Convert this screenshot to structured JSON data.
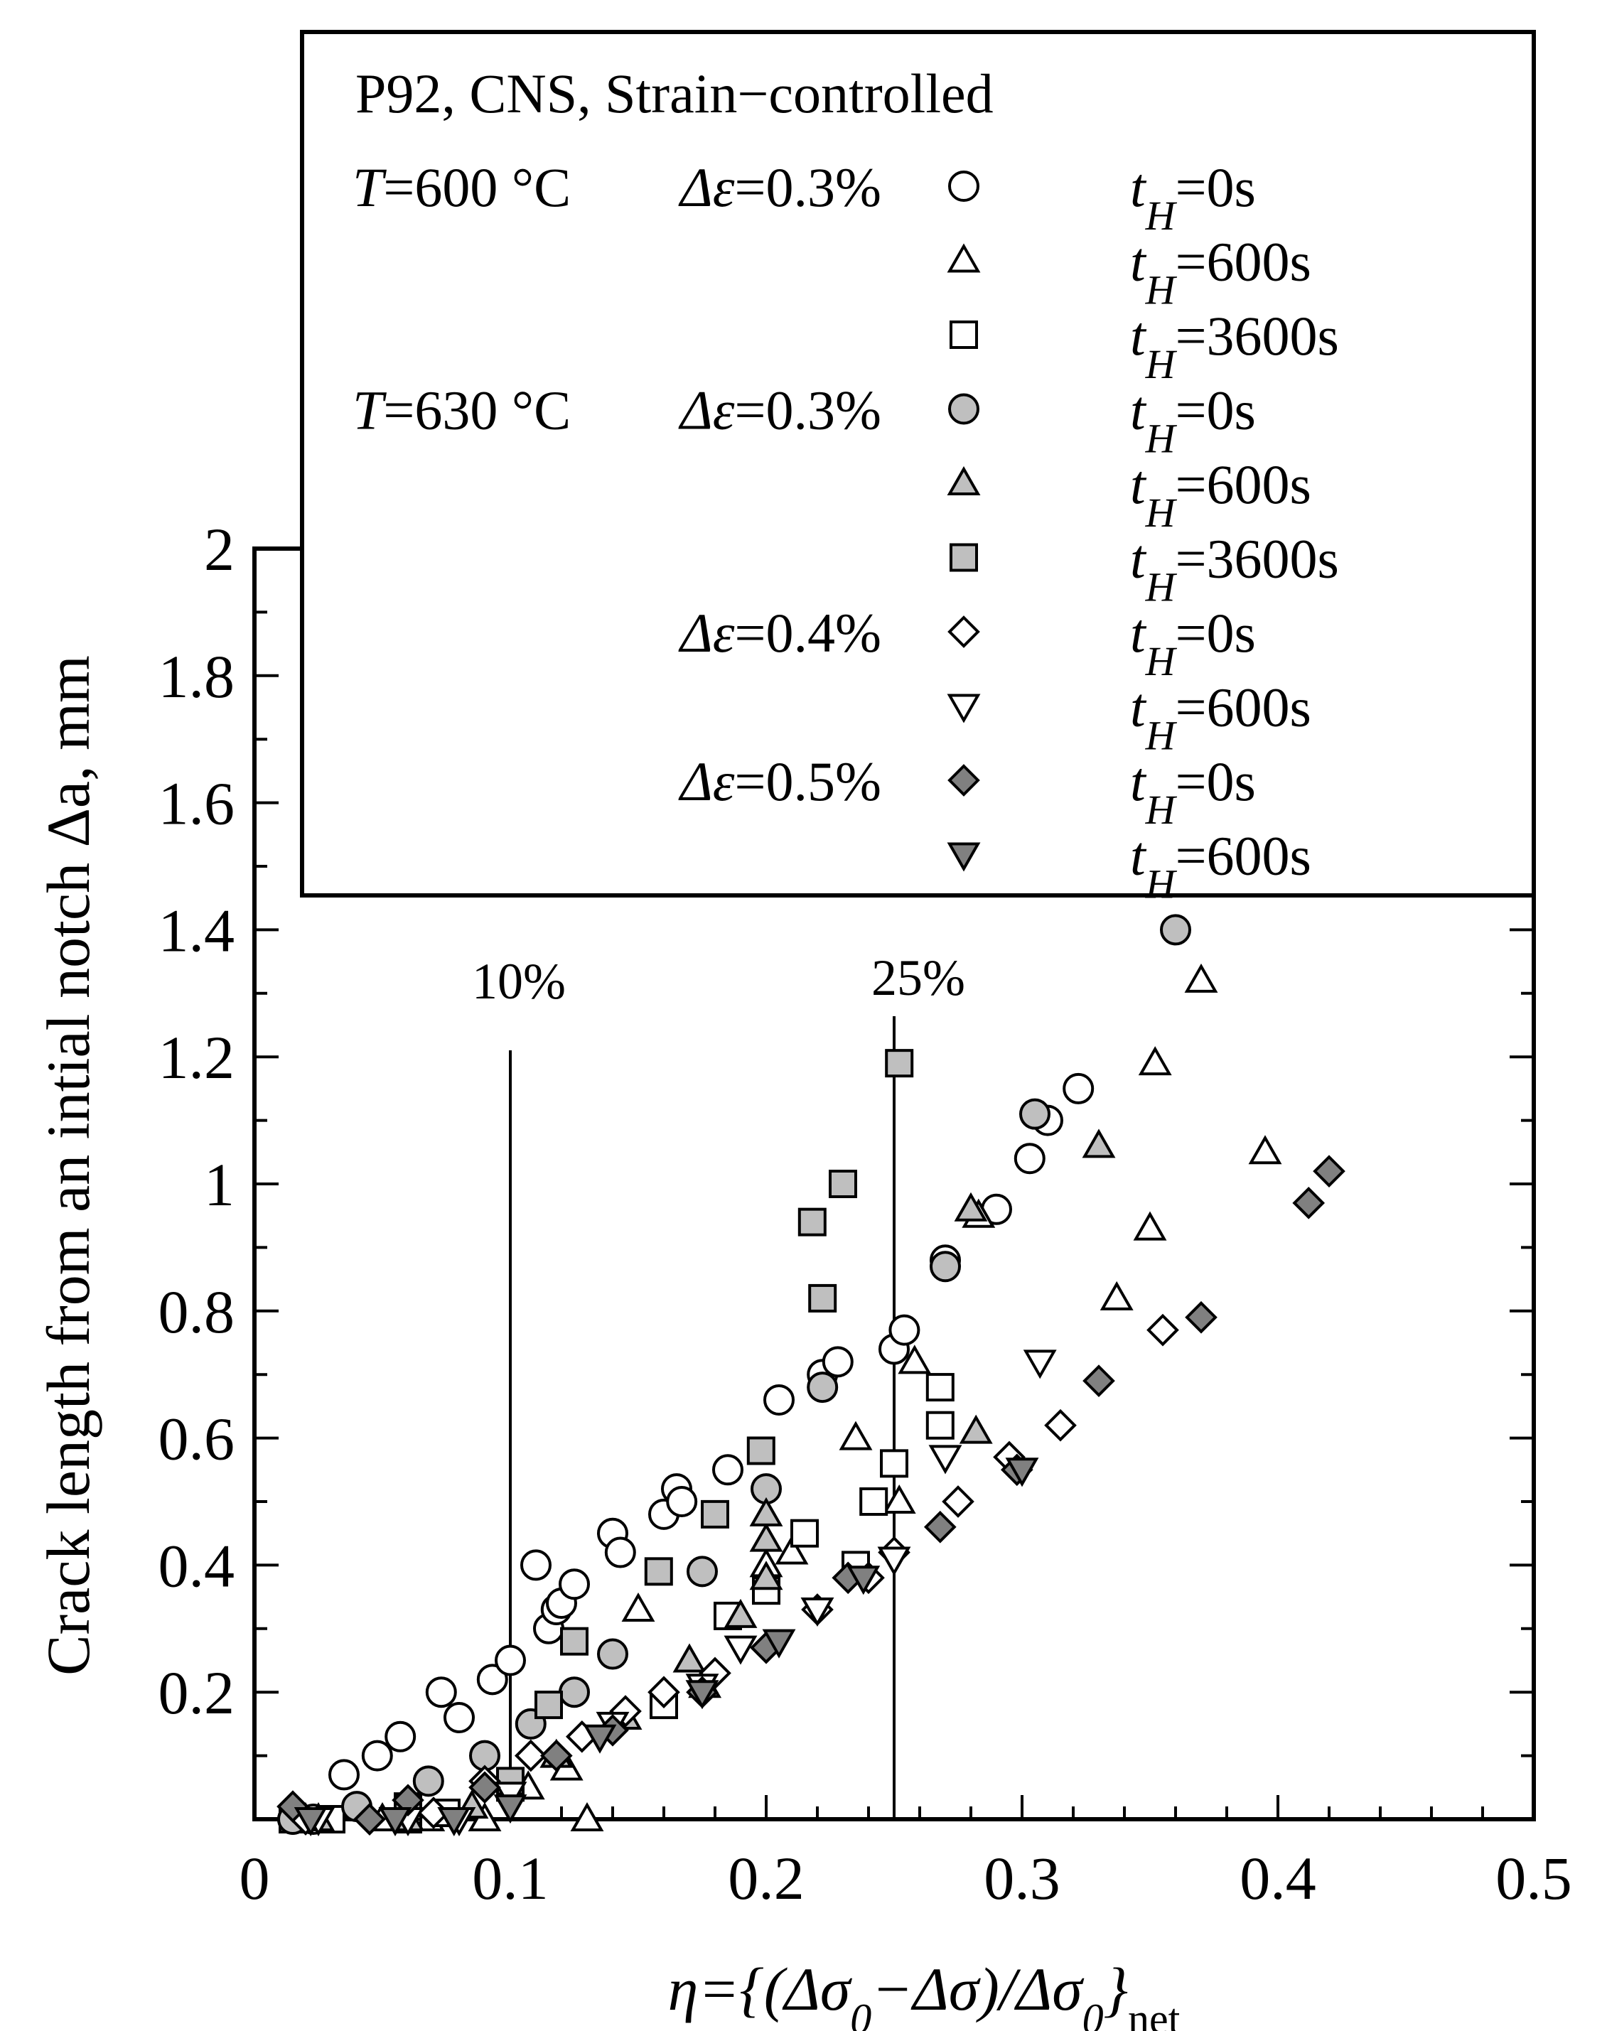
{
  "chart_data": {
    "type": "scatter",
    "title": "",
    "xlabel": "η={(Δσ0−Δσ)/Δσ0}net",
    "ylabel": "Crack length from an intial notch Δa, mm",
    "xlim": [
      0,
      0.5
    ],
    "ylim": [
      0,
      2
    ],
    "x_ticks": [
      "0",
      "0.1",
      "0.2",
      "0.3",
      "0.4",
      "0.5"
    ],
    "y_ticks": [
      "0.2",
      "0.4",
      "0.6",
      "0.8",
      "1",
      "1.2",
      "1.4",
      "1.6",
      "1.8",
      "2"
    ],
    "grid": false,
    "vertical_lines": [
      {
        "x": 0.1,
        "label": "10%"
      },
      {
        "x": 0.25,
        "label": "25%"
      }
    ],
    "legend": {
      "title": "P92, CNS, Strain−controlled",
      "location": "top",
      "groups": [
        {
          "temperature": "T=600 °C",
          "strain": "Δε=0.3%"
        },
        {
          "temperature": "T=630 °C",
          "strain": "Δε=0.3%"
        },
        {
          "temperature": "",
          "strain": "Δε=0.4%"
        },
        {
          "temperature": "",
          "strain": "Δε=0.5%"
        }
      ]
    },
    "series": [
      {
        "name": "T=600 °C Δε=0.3% tH=0s",
        "hold_label": "tH=0s",
        "marker": "circle",
        "fill": "#ffffff",
        "points": [
          [
            0.015,
            0.0
          ],
          [
            0.023,
            0.0
          ],
          [
            0.035,
            0.07
          ],
          [
            0.048,
            0.1
          ],
          [
            0.057,
            0.13
          ],
          [
            0.073,
            0.2
          ],
          [
            0.08,
            0.16
          ],
          [
            0.093,
            0.22
          ],
          [
            0.1,
            0.25
          ],
          [
            0.11,
            0.4
          ],
          [
            0.115,
            0.3
          ],
          [
            0.118,
            0.33
          ],
          [
            0.12,
            0.34
          ],
          [
            0.125,
            0.37
          ],
          [
            0.14,
            0.45
          ],
          [
            0.143,
            0.42
          ],
          [
            0.16,
            0.48
          ],
          [
            0.165,
            0.52
          ],
          [
            0.167,
            0.5
          ],
          [
            0.185,
            0.55
          ],
          [
            0.205,
            0.66
          ],
          [
            0.222,
            0.7
          ],
          [
            0.228,
            0.72
          ],
          [
            0.25,
            0.74
          ],
          [
            0.254,
            0.77
          ],
          [
            0.27,
            0.88
          ],
          [
            0.29,
            0.96
          ],
          [
            0.303,
            1.04
          ],
          [
            0.31,
            1.1
          ],
          [
            0.322,
            1.15
          ]
        ]
      },
      {
        "name": "T=600 °C Δε=0.3% tH=600s",
        "hold_label": "tH=600s",
        "marker": "triangle-up",
        "fill": "#ffffff",
        "points": [
          [
            0.02,
            0.0
          ],
          [
            0.05,
            0.0
          ],
          [
            0.068,
            0.0
          ],
          [
            0.09,
            0.0
          ],
          [
            0.107,
            0.05
          ],
          [
            0.122,
            0.08
          ],
          [
            0.13,
            0.0
          ],
          [
            0.15,
            0.33
          ],
          [
            0.176,
            0.21
          ],
          [
            0.2,
            0.4
          ],
          [
            0.21,
            0.42
          ],
          [
            0.235,
            0.6
          ],
          [
            0.252,
            0.5
          ],
          [
            0.258,
            0.72
          ],
          [
            0.283,
            0.95
          ],
          [
            0.337,
            0.82
          ],
          [
            0.35,
            0.93
          ],
          [
            0.352,
            1.19
          ],
          [
            0.37,
            1.32
          ],
          [
            0.395,
            1.05
          ]
        ]
      },
      {
        "name": "T=600 °C Δε=0.3% tH=3600s",
        "hold_label": "tH=3600s",
        "marker": "square",
        "fill": "#ffffff",
        "points": [
          [
            0.015,
            0.0
          ],
          [
            0.03,
            0.0
          ],
          [
            0.06,
            0.0
          ],
          [
            0.075,
            0.01
          ],
          [
            0.1,
            0.05
          ],
          [
            0.16,
            0.18
          ],
          [
            0.185,
            0.32
          ],
          [
            0.2,
            0.36
          ],
          [
            0.215,
            0.45
          ],
          [
            0.235,
            0.4
          ],
          [
            0.242,
            0.5
          ],
          [
            0.25,
            0.56
          ],
          [
            0.268,
            0.62
          ],
          [
            0.268,
            0.68
          ]
        ]
      },
      {
        "name": "T=630 °C Δε=0.3% tH=0s",
        "hold_label": "tH=0s",
        "marker": "circle",
        "fill": "#bfbfbf",
        "points": [
          [
            0.015,
            0.0
          ],
          [
            0.04,
            0.02
          ],
          [
            0.068,
            0.06
          ],
          [
            0.09,
            0.1
          ],
          [
            0.108,
            0.15
          ],
          [
            0.125,
            0.2
          ],
          [
            0.14,
            0.26
          ],
          [
            0.175,
            0.39
          ],
          [
            0.2,
            0.52
          ],
          [
            0.222,
            0.68
          ],
          [
            0.27,
            0.87
          ],
          [
            0.305,
            1.11
          ],
          [
            0.36,
            1.4
          ]
        ]
      },
      {
        "name": "T=630 °C Δε=0.3% tH=600s",
        "hold_label": "tH=600s",
        "marker": "triangle-up",
        "fill": "#bfbfbf",
        "points": [
          [
            0.025,
            0.0
          ],
          [
            0.06,
            0.0
          ],
          [
            0.085,
            0.02
          ],
          [
            0.118,
            0.1
          ],
          [
            0.145,
            0.16
          ],
          [
            0.17,
            0.25
          ],
          [
            0.19,
            0.32
          ],
          [
            0.2,
            0.38
          ],
          [
            0.2,
            0.44
          ],
          [
            0.2,
            0.48
          ],
          [
            0.282,
            0.61
          ],
          [
            0.28,
            0.96
          ],
          [
            0.33,
            1.06
          ]
        ]
      },
      {
        "name": "T=630 °C Δε=0.3% tH=3600s",
        "hold_label": "tH=3600s",
        "marker": "square",
        "fill": "#bfbfbf",
        "points": [
          [
            0.06,
            0.02
          ],
          [
            0.1,
            0.06
          ],
          [
            0.115,
            0.18
          ],
          [
            0.125,
            0.28
          ],
          [
            0.158,
            0.39
          ],
          [
            0.18,
            0.48
          ],
          [
            0.198,
            0.58
          ],
          [
            0.218,
            0.94
          ],
          [
            0.222,
            0.82
          ],
          [
            0.23,
            1.0
          ],
          [
            0.252,
            1.19
          ]
        ]
      },
      {
        "name": "Δε=0.4% tH=0s",
        "hold_label": "tH=0s",
        "marker": "diamond",
        "fill": "#ffffff",
        "points": [
          [
            0.02,
            0.0
          ],
          [
            0.045,
            0.0
          ],
          [
            0.07,
            0.01
          ],
          [
            0.09,
            0.06
          ],
          [
            0.108,
            0.1
          ],
          [
            0.128,
            0.13
          ],
          [
            0.145,
            0.17
          ],
          [
            0.16,
            0.2
          ],
          [
            0.18,
            0.23
          ],
          [
            0.2,
            0.27
          ],
          [
            0.22,
            0.33
          ],
          [
            0.24,
            0.38
          ],
          [
            0.25,
            0.42
          ],
          [
            0.275,
            0.5
          ],
          [
            0.295,
            0.57
          ],
          [
            0.315,
            0.62
          ],
          [
            0.355,
            0.77
          ]
        ]
      },
      {
        "name": "Δε=0.4% tH=600s",
        "hold_label": "tH=600s",
        "marker": "triangle-down",
        "fill": "#ffffff",
        "points": [
          [
            0.025,
            0.0
          ],
          [
            0.06,
            0.0
          ],
          [
            0.08,
            0.0
          ],
          [
            0.1,
            0.04
          ],
          [
            0.14,
            0.15
          ],
          [
            0.175,
            0.21
          ],
          [
            0.19,
            0.27
          ],
          [
            0.22,
            0.33
          ],
          [
            0.25,
            0.41
          ],
          [
            0.27,
            0.57
          ],
          [
            0.307,
            0.72
          ]
        ]
      },
      {
        "name": "Δε=0.5% tH=0s",
        "hold_label": "tH=0s",
        "marker": "diamond",
        "fill": "#808080",
        "points": [
          [
            0.015,
            0.02
          ],
          [
            0.045,
            0.0
          ],
          [
            0.06,
            0.03
          ],
          [
            0.09,
            0.05
          ],
          [
            0.118,
            0.1
          ],
          [
            0.14,
            0.14
          ],
          [
            0.175,
            0.2
          ],
          [
            0.2,
            0.27
          ],
          [
            0.232,
            0.38
          ],
          [
            0.268,
            0.46
          ],
          [
            0.298,
            0.55
          ],
          [
            0.33,
            0.69
          ],
          [
            0.37,
            0.79
          ],
          [
            0.412,
            0.97
          ],
          [
            0.42,
            1.02
          ]
        ]
      },
      {
        "name": "Δε=0.5% tH=600s",
        "hold_label": "tH=600s",
        "marker": "triangle-down",
        "fill": "#808080",
        "points": [
          [
            0.022,
            0.0
          ],
          [
            0.055,
            0.0
          ],
          [
            0.078,
            0.0
          ],
          [
            0.1,
            0.02
          ],
          [
            0.135,
            0.13
          ],
          [
            0.175,
            0.2
          ],
          [
            0.205,
            0.28
          ],
          [
            0.238,
            0.38
          ],
          [
            0.3,
            0.55
          ]
        ]
      }
    ]
  }
}
